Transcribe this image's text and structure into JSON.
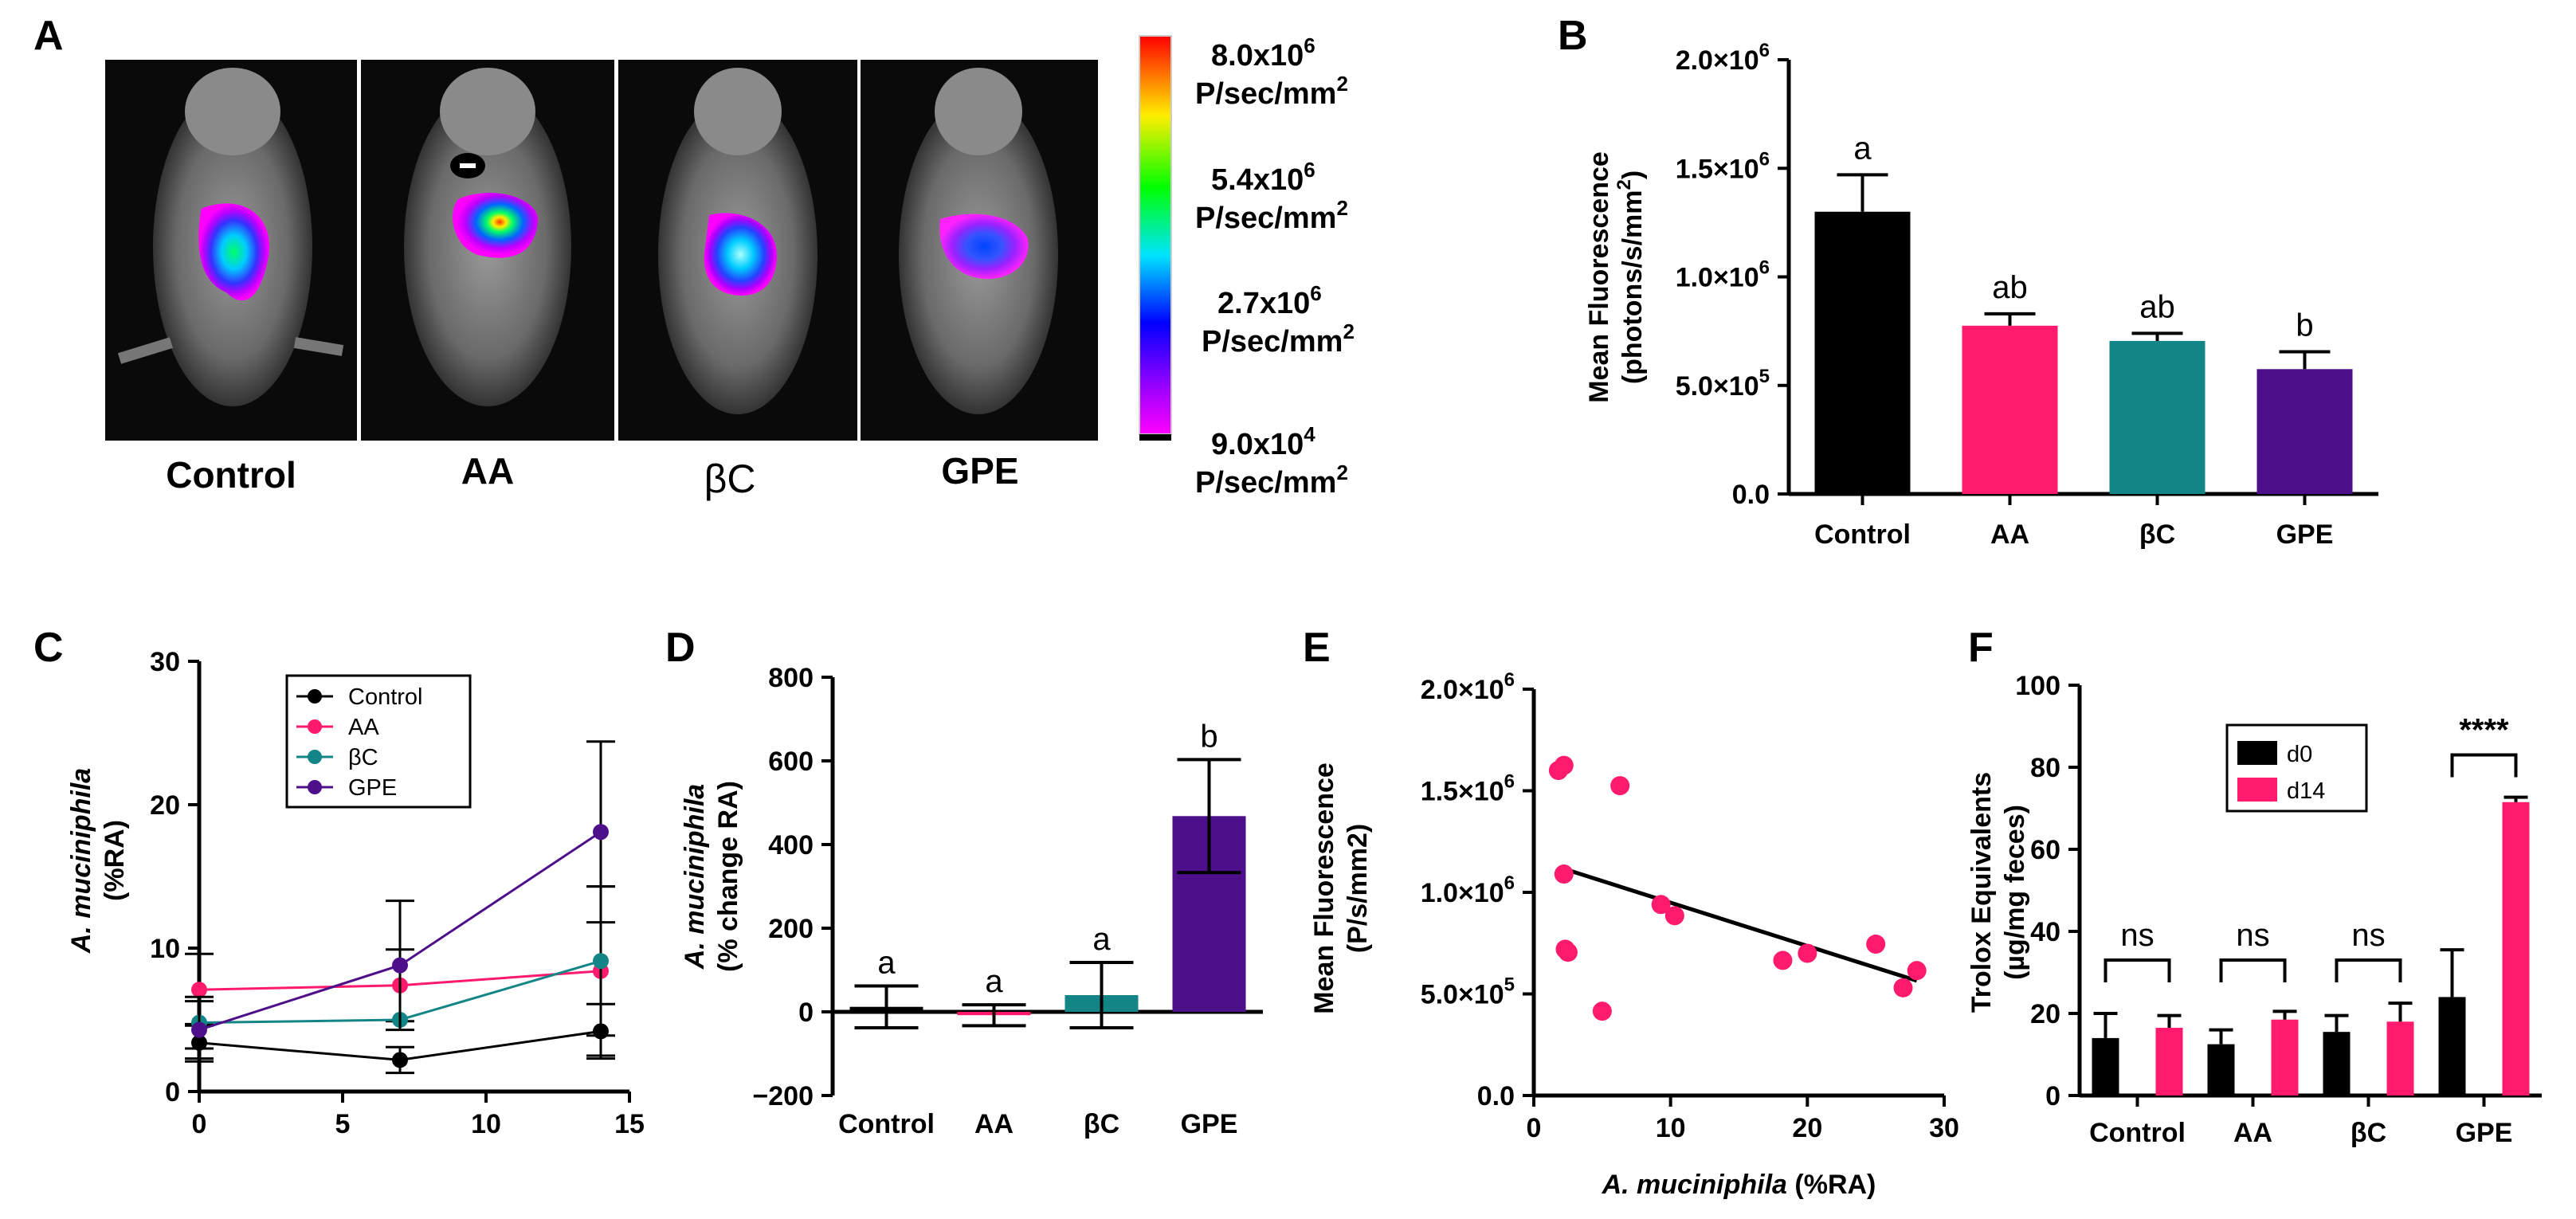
{
  "panel_labels": {
    "a": "A",
    "b": "B",
    "c": "C",
    "d": "D",
    "e": "E",
    "f": "F"
  },
  "colors": {
    "control": "#000000",
    "aa": "#ff1a6e",
    "bc": "#148587",
    "gpe": "#4d0f8a"
  },
  "panel_a": {
    "image_labels": [
      "Control",
      "AA",
      "βC",
      "GPE"
    ],
    "colorbar_ticks": [
      {
        "value": "8.0x10",
        "exp": "6",
        "unit": "P/sec/mm",
        "unit_exp": "2"
      },
      {
        "value": "5.4x10",
        "exp": "6",
        "unit": "P/sec/mm",
        "unit_exp": "2"
      },
      {
        "value": "2.7x10",
        "exp": "6",
        "unit": "P/sec/mm",
        "unit_exp": "2"
      },
      {
        "value": "9.0x10",
        "exp": "4",
        "unit": "P/sec/mm",
        "unit_exp": "2"
      }
    ]
  },
  "chart_data": [
    {
      "id": "B",
      "type": "bar",
      "title": "",
      "ylabel_line1": "Mean Fluorescence",
      "ylabel_line2": "(photons/s/mm",
      "ylabel_line2_exp": "2",
      "ylabel_line2_end": ")",
      "categories": [
        "Control",
        "AA",
        "βC",
        "GPE"
      ],
      "values": [
        1300000,
        775000,
        705000,
        575000
      ],
      "errors": [
        170000,
        55000,
        35000,
        80000
      ],
      "letters": [
        "a",
        "ab",
        "ab",
        "b"
      ],
      "ylim": [
        0,
        2000000
      ],
      "ticks": [
        0,
        500000,
        1000000,
        1500000,
        2000000
      ],
      "tick_labels": [
        {
          "m": "0.0",
          "e": ""
        },
        {
          "m": "5.0×10",
          "e": "5"
        },
        {
          "m": "1.0×10",
          "e": "6"
        },
        {
          "m": "1.5×10",
          "e": "6"
        },
        {
          "m": "2.0×10",
          "e": "6"
        }
      ]
    },
    {
      "id": "C",
      "type": "line",
      "ylabel_line1": "A. muciniphila",
      "ylabel_line2": "(%RA)",
      "xlim": [
        0,
        15
      ],
      "ylim": [
        0,
        30
      ],
      "xticks": [
        0,
        5,
        10,
        15
      ],
      "xtick_labels": [
        "0",
        "5",
        "10",
        "15"
      ],
      "yticks": [
        0,
        10,
        20,
        30
      ],
      "ytick_labels": [
        "0",
        "10",
        "20",
        "30"
      ],
      "x": [
        0,
        7,
        14
      ],
      "series": [
        {
          "name": "Control",
          "values": [
            3.4,
            2.2,
            4.2
          ],
          "errors": [
            1.3,
            0.9,
            1.9
          ]
        },
        {
          "name": "AA",
          "values": [
            7.1,
            7.4,
            8.4
          ],
          "errors": [
            2.5,
            2.5,
            5.9
          ]
        },
        {
          "name": "βC",
          "values": [
            4.8,
            5.0,
            9.1
          ],
          "errors": [
            1.8,
            0,
            5.2
          ]
        },
        {
          "name": "GPE",
          "values": [
            4.3,
            8.8,
            18.1
          ],
          "errors": [
            2.0,
            4.5,
            6.3
          ]
        }
      ]
    },
    {
      "id": "D",
      "type": "bar",
      "ylabel_line1": "A. muciniphila",
      "ylabel_line2": "(% change RA)",
      "categories": [
        "Control",
        "AA",
        "βC",
        "GPE"
      ],
      "values": [
        12,
        -8,
        40,
        468
      ],
      "errors": [
        50,
        25,
        78,
        135
      ],
      "letters": [
        "a",
        "a",
        "a",
        "b"
      ],
      "ylim": [
        -200,
        800
      ],
      "ticks": [
        -200,
        0,
        200,
        400,
        600,
        800
      ],
      "tick_labels": [
        "−200",
        "0",
        "200",
        "400",
        "600",
        "800"
      ]
    },
    {
      "id": "E",
      "type": "scatter",
      "ylabel": "Mean Fluorescence",
      "ylabel2": "(P/s/mm2)",
      "xlabel_italic": "A. muciniphila",
      "xlabel_rest": " (%RA)",
      "xlim": [
        0,
        30
      ],
      "ylim": [
        0,
        2000000
      ],
      "xticks": [
        0,
        10,
        20,
        30
      ],
      "xtick_labels": [
        "0",
        "10",
        "20",
        "30"
      ],
      "yticks": [
        0,
        500000,
        1000000,
        1500000,
        2000000
      ],
      "ytick_labels": [
        {
          "m": "0.0",
          "e": ""
        },
        {
          "m": "5.0×10",
          "e": "5"
        },
        {
          "m": "1.0×10",
          "e": "6"
        },
        {
          "m": "1.5×10",
          "e": "6"
        },
        {
          "m": "2.0×10",
          "e": "6"
        }
      ],
      "points": [
        [
          1.8,
          1600000
        ],
        [
          2.2,
          1625000
        ],
        [
          2.2,
          1090000
        ],
        [
          2.3,
          720000
        ],
        [
          2.5,
          705000
        ],
        [
          5.0,
          415000
        ],
        [
          6.3,
          1525000
        ],
        [
          9.3,
          940000
        ],
        [
          10.3,
          885000
        ],
        [
          18.2,
          665000
        ],
        [
          20.0,
          700000
        ],
        [
          25.0,
          745000
        ],
        [
          27.0,
          530000
        ],
        [
          28.0,
          615000
        ]
      ],
      "fit": [
        [
          2,
          1120000
        ],
        [
          28,
          565000
        ]
      ]
    },
    {
      "id": "F",
      "type": "bar",
      "ylabel_line1": "Trolox Equivalents",
      "ylabel_line2": "(µg/mg feces)",
      "categories": [
        "Control",
        "AA",
        "βC",
        "GPE"
      ],
      "series": [
        {
          "name": "d0",
          "values": [
            14,
            12.5,
            15.5,
            24
          ],
          "errors": [
            6,
            3.5,
            4,
            11.5
          ]
        },
        {
          "name": "d14",
          "values": [
            16.5,
            18.5,
            18,
            71.5
          ],
          "errors": [
            3,
            2,
            4.5,
            1.2
          ]
        }
      ],
      "significance": [
        "ns",
        "ns",
        "ns",
        "****"
      ],
      "ylim": [
        0,
        100
      ],
      "ticks": [
        0,
        20,
        40,
        60,
        80,
        100
      ],
      "tick_labels": [
        "0",
        "20",
        "40",
        "60",
        "80",
        "100"
      ]
    }
  ]
}
